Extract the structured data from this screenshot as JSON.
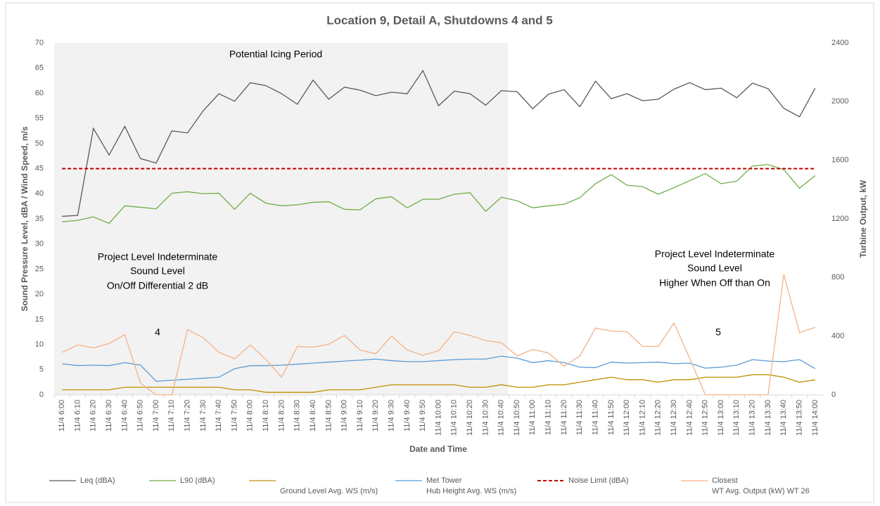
{
  "chart_data": {
    "type": "line",
    "title": "Location 9, Detail A, Shutdowns 4 and 5",
    "x_label": "Date and Time",
    "y_label": "Sound Pressure Level, dBA / Wind Speed, m/s",
    "y2_label": "Turbine Output, kW",
    "categories": [
      "11/4 6:00",
      "11/4 6:10",
      "11/4 6:20",
      "11/4 6:30",
      "11/4 6:40",
      "11/4 6:50",
      "11/4 7:00",
      "11/4 7:10",
      "11/4 7:20",
      "11/4 7:30",
      "11/4 7:40",
      "11/4 7:50",
      "11/4 8:00",
      "11/4 8:10",
      "11/4 8:20",
      "11/4 8:30",
      "11/4 8:40",
      "11/4 8:50",
      "11/4 9:00",
      "11/4 9:10",
      "11/4 9:20",
      "11/4 9:30",
      "11/4 9:40",
      "11/4 9:50",
      "11/4 10:00",
      "11/4 10:10",
      "11/4 10:20",
      "11/4 10:30",
      "11/4 10:40",
      "11/4 10:50",
      "11/4 11:00",
      "11/4 11:10",
      "11/4 11:20",
      "11/4 11:30",
      "11/4 11:40",
      "11/4 11:50",
      "11/4 12:00",
      "11/4 12:10",
      "11/4 12:20",
      "11/4 12:30",
      "11/4 12:40",
      "11/4 12:50",
      "11/4 13:00",
      "11/4 13:10",
      "11/4 13:20",
      "11/4 13:30",
      "11/4 13:40",
      "11/4 13:50",
      "11/4 14:00"
    ],
    "series": [
      {
        "name": [
          "Leq (dBA)"
        ],
        "color": "#595959",
        "values": [
          35.5,
          35.7,
          53,
          47.7,
          53.4,
          47,
          46.1,
          52.5,
          52.1,
          56.5,
          59.9,
          58.4,
          62.1,
          61.5,
          59.9,
          57.8,
          62.6,
          58.8,
          61.2,
          60.6,
          59.5,
          60.2,
          59.9,
          64.5,
          57.5,
          60.4,
          59.9,
          57.6,
          60.5,
          60.3,
          56.9,
          59.8,
          60.7,
          57.3,
          62.4,
          58.9,
          59.9,
          58.5,
          58.8,
          60.8,
          62.1,
          60.7,
          61,
          59.1,
          62,
          60.9,
          57,
          55.3,
          61
        ]
      },
      {
        "name": [
          "L90 (dBA)"
        ],
        "color": "#70ad47",
        "values": [
          34.4,
          34.7,
          35.4,
          34.1,
          37.6,
          37.3,
          37,
          40.1,
          40.4,
          40,
          40.1,
          36.9,
          40.1,
          38.1,
          37.6,
          37.8,
          38.3,
          38.4,
          36.9,
          36.8,
          39,
          39.4,
          37.2,
          38.9,
          38.9,
          39.9,
          40.2,
          36.5,
          39.3,
          38.6,
          37.2,
          37.6,
          37.9,
          39.2,
          42,
          43.8,
          41.7,
          41.4,
          39.9,
          41.2,
          42.6,
          44,
          42,
          42.5,
          45.5,
          45.8,
          44.8,
          41.1,
          43.6
        ]
      },
      {
        "name": [
          "Ground Level Avg. WS (m/s)"
        ],
        "color": "#bf8f00",
        "values": [
          1,
          1,
          1,
          1,
          1.5,
          1.5,
          1.5,
          1.5,
          1.5,
          1.5,
          1.5,
          1,
          1,
          0.5,
          0.5,
          0.5,
          0.5,
          1,
          1,
          1,
          1.5,
          2,
          2,
          2,
          2,
          2,
          1.5,
          1.5,
          2,
          1.5,
          1.5,
          2,
          2,
          2.5,
          3,
          3.5,
          3,
          3,
          2.5,
          3,
          3,
          3.5,
          3.5,
          3.5,
          4,
          4,
          3.5,
          2.5,
          3
        ]
      },
      {
        "name": [
          "Met Tower",
          "Hub Height Avg. WS (m/s)"
        ],
        "color": "#5b9bd5",
        "values": [
          6.2,
          5.8,
          5.9,
          5.8,
          6.4,
          5.9,
          2.7,
          2.9,
          3.1,
          3.3,
          3.5,
          5.2,
          5.8,
          5.8,
          5.9,
          6.1,
          6.3,
          6.5,
          6.7,
          6.9,
          7.1,
          6.8,
          6.6,
          6.6,
          6.8,
          7,
          7.1,
          7.1,
          7.7,
          7.3,
          6.4,
          6.8,
          6.4,
          5.5,
          5.4,
          6.5,
          6.3,
          6.4,
          6.5,
          6.2,
          6.3,
          5.3,
          5.5,
          5.9,
          7,
          6.7,
          6.6,
          7,
          5.2
        ]
      },
      {
        "name": [
          "Noise Limit (dBA)"
        ],
        "color": "#c00000",
        "dashed": true,
        "values": [
          45,
          45,
          45,
          45,
          45,
          45,
          45,
          45,
          45,
          45,
          45,
          45,
          45,
          45,
          45,
          45,
          45,
          45,
          45,
          45,
          45,
          45,
          45,
          45,
          45,
          45,
          45,
          45,
          45,
          45,
          45,
          45,
          45,
          45,
          45,
          45,
          45,
          45,
          45,
          45,
          45,
          45,
          45,
          45,
          45,
          45,
          45,
          45,
          45
        ]
      },
      {
        "name": [
          "Closest",
          "WT Avg. Output (kW) WT 26"
        ],
        "color": "#f4b183",
        "axis": "y2",
        "values": [
          290,
          340,
          320,
          350,
          410,
          80,
          0,
          0,
          445,
          390,
          290,
          245,
          340,
          240,
          120,
          330,
          325,
          345,
          405,
          305,
          280,
          400,
          305,
          270,
          300,
          430,
          405,
          370,
          355,
          265,
          310,
          285,
          195,
          265,
          455,
          435,
          430,
          330,
          330,
          490,
          250,
          0,
          0,
          0,
          0,
          0,
          820,
          425,
          460
        ]
      }
    ],
    "ylim": [
      0,
      70
    ],
    "yticks": [
      0,
      5,
      10,
      15,
      20,
      25,
      30,
      35,
      40,
      45,
      50,
      55,
      60,
      65,
      70
    ],
    "y2lim": [
      0,
      2400
    ],
    "y2ticks": [
      0,
      400,
      800,
      1200,
      1600,
      2000,
      2400
    ],
    "annotations": {
      "icing": "Potential Icing Period",
      "left": [
        "Project Level Indeterminate",
        "Sound Level",
        "On/Off Differential 2 dB"
      ],
      "right": [
        "Project Level Indeterminate",
        "Sound Level",
        "Higher When Off than On"
      ],
      "shutdown_a": "4",
      "shutdown_b": "5"
    }
  }
}
